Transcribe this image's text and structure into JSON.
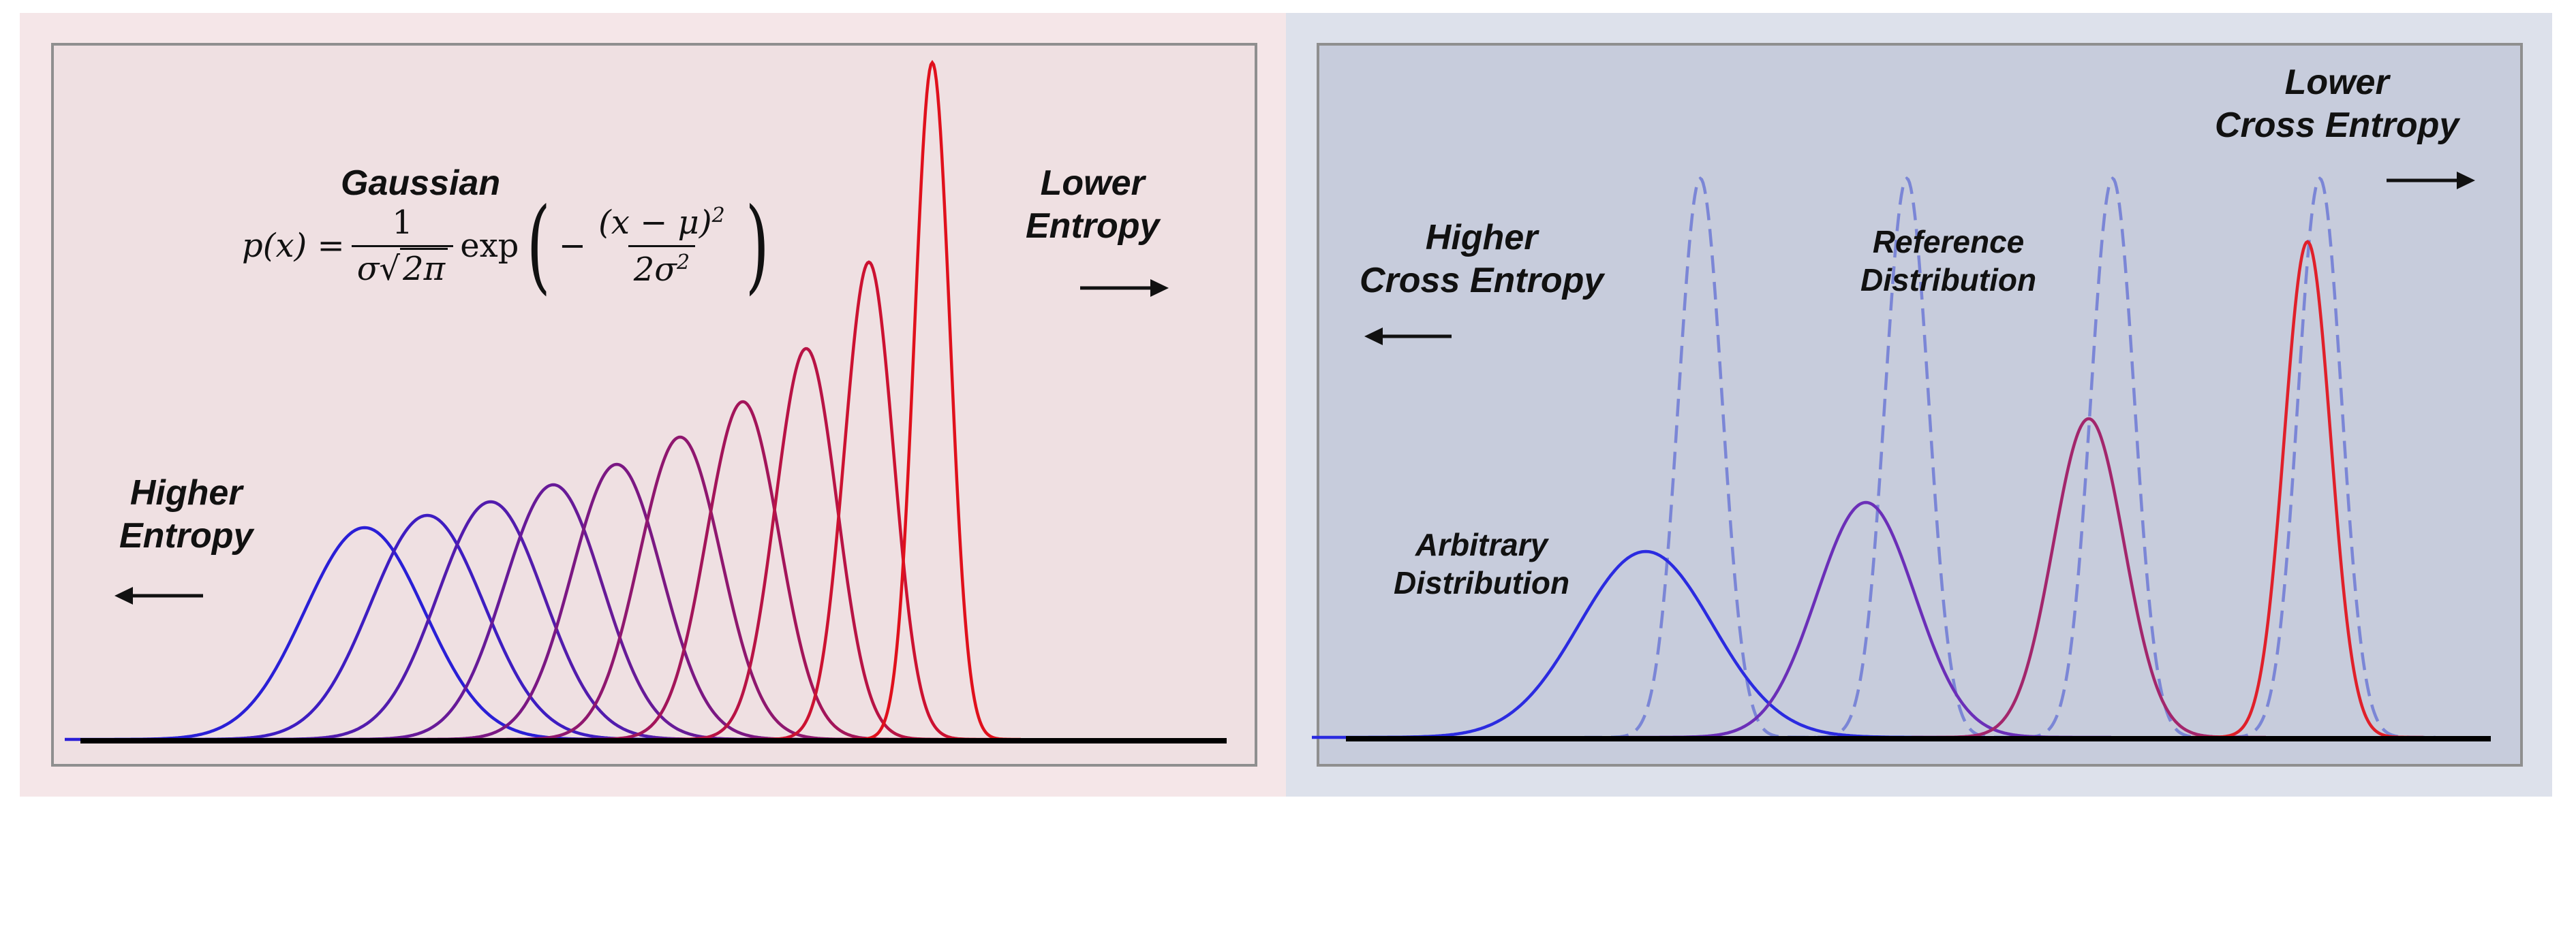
{
  "left_panel": {
    "background": "#f5e6e8",
    "frame_fill": "#efe0e2",
    "title": "Gaussian",
    "formula": {
      "lhs": "p(x) =",
      "frac1_num": "1",
      "frac1_den_sigma": "σ",
      "frac1_den_sqrt": "2π",
      "exp": "exp",
      "minus": "−",
      "frac2_num_base": "(x − μ)",
      "frac2_num_exp": "2",
      "frac2_den_base": "2σ",
      "frac2_den_exp": "2"
    },
    "lower_label": [
      "Lower",
      "Entropy"
    ],
    "higher_label": [
      "Higher",
      "Entropy"
    ],
    "curves": {
      "count": 10,
      "color_start": "#2a1fd6",
      "color_end": "#e0101c"
    }
  },
  "right_panel": {
    "background": "#dde1eb",
    "frame_fill": "#c7ccdc",
    "higher_label": [
      "Higher",
      "Cross Entropy"
    ],
    "lower_label": [
      "Lower",
      "Cross Entropy"
    ],
    "reference_label": [
      "Reference",
      "Distribution"
    ],
    "arbitrary_label": [
      "Arbitrary",
      "Distribution"
    ],
    "reference_color": "#7b86d6",
    "arbitrary_colors": [
      "#2b2be0",
      "#6b2fb8",
      "#a3266c",
      "#e0202a"
    ]
  }
}
